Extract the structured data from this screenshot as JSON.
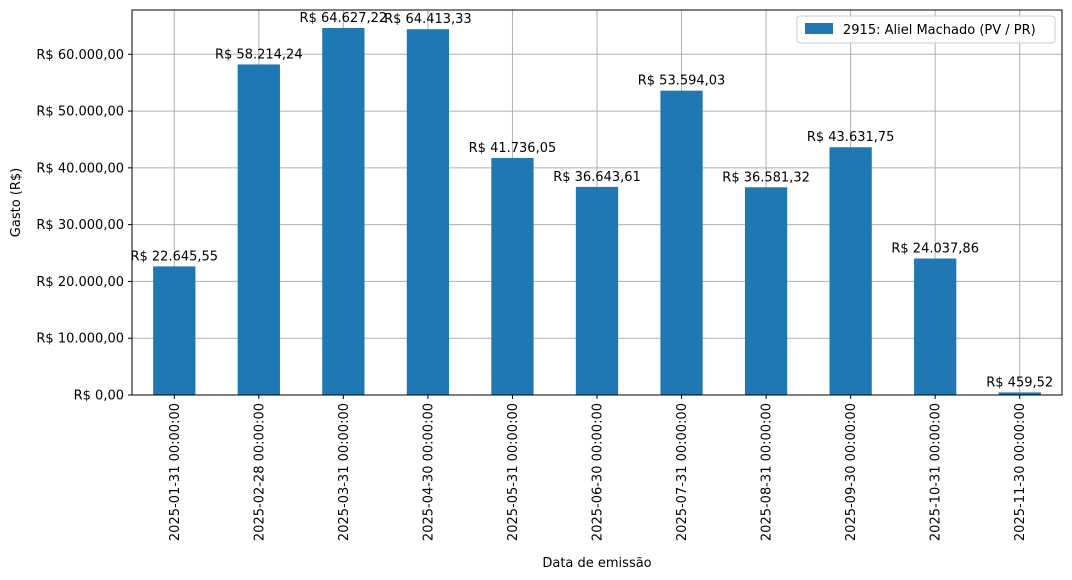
{
  "chart_data": {
    "type": "bar",
    "xlabel": "Data de emissão",
    "ylabel": "Gasto (R$)",
    "ylim": [
      0,
      67800
    ],
    "yticks": [
      0,
      10000,
      20000,
      30000,
      40000,
      50000,
      60000
    ],
    "ytick_labels": [
      "R$ 0,00",
      "R$ 10.000,00",
      "R$ 20.000,00",
      "R$ 30.000,00",
      "R$ 40.000,00",
      "R$ 50.000,00",
      "R$ 60.000,00"
    ],
    "grid": true,
    "legend_position": "top-right",
    "categories": [
      "2025-01-31 00:00:00",
      "2025-02-28 00:00:00",
      "2025-03-31 00:00:00",
      "2025-04-30 00:00:00",
      "2025-05-31 00:00:00",
      "2025-06-30 00:00:00",
      "2025-07-31 00:00:00",
      "2025-08-31 00:00:00",
      "2025-09-30 00:00:00",
      "2025-10-31 00:00:00",
      "2025-11-30 00:00:00"
    ],
    "series": [
      {
        "name": "2915: Aliel Machado (PV / PR)",
        "color": "#1f77b4",
        "values": [
          22645.55,
          58214.24,
          64627.22,
          64413.33,
          41736.05,
          36643.61,
          53594.03,
          36581.32,
          43631.75,
          24037.86,
          459.52
        ],
        "labels": [
          "R$ 22.645,55",
          "R$ 58.214,24",
          "R$ 64.627,22",
          "R$ 64.413,33",
          "R$ 41.736,05",
          "R$ 36.643,61",
          "R$ 53.594,03",
          "R$ 36.581,32",
          "R$ 43.631,75",
          "R$ 24.037,86",
          "R$ 459,52"
        ]
      }
    ]
  }
}
